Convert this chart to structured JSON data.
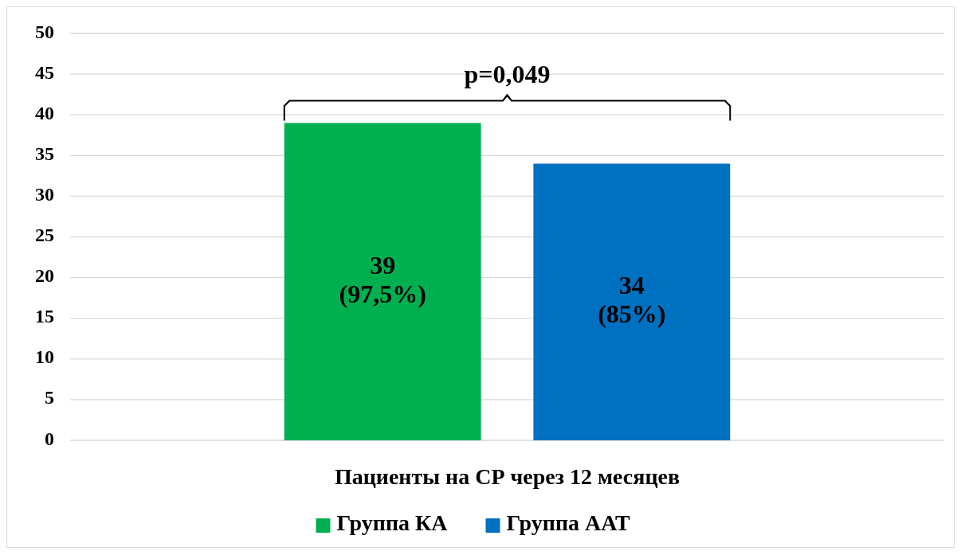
{
  "chart_data": {
    "type": "bar",
    "categories": [
      "Пациенты на СР через 12 месяцев"
    ],
    "series": [
      {
        "name": "Группа КА",
        "color": "#00b050",
        "values": [
          39
        ],
        "value_labels": [
          "39\n(97,5%)"
        ]
      },
      {
        "name": "Группа ААТ",
        "color": "#0070c0",
        "values": [
          34
        ],
        "value_labels": [
          "34\n(85%)"
        ]
      }
    ],
    "ylim": [
      0,
      50
    ],
    "yticks": [
      0,
      5,
      10,
      15,
      20,
      25,
      30,
      35,
      40,
      45,
      50
    ],
    "grid": "y",
    "legend": "bottom",
    "annotations": [
      "p=0,049"
    ]
  }
}
